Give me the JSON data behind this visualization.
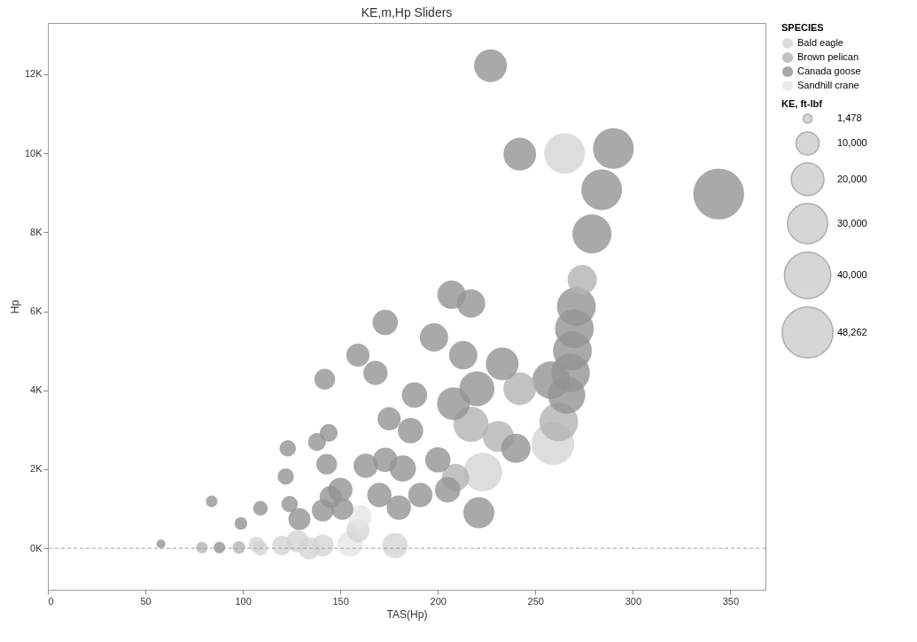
{
  "chart_data": {
    "type": "bubble",
    "title": "KE,m,Hp Sliders",
    "xlabel": "TAS(Hp)",
    "ylabel": "Hp",
    "legend_title": "SPECIES",
    "annotations": [
      "KE, ft-lbf"
    ],
    "size_legend": [
      {
        "value": 1478,
        "label": "1,478"
      },
      {
        "value": 10000,
        "label": "10,000"
      },
      {
        "value": 20000,
        "label": "20,000"
      },
      {
        "value": 30000,
        "label": "30,000"
      },
      {
        "value": 40000,
        "label": "40,000"
      },
      {
        "value": 48262,
        "label": "48,262"
      }
    ],
    "legend": "top right",
    "grid": false,
    "xlim": [
      0,
      368
    ],
    "xticks": [
      0,
      50,
      100,
      150,
      200,
      250,
      300,
      350
    ],
    "ylim": [
      -1050,
      13300
    ],
    "yticks": [
      {
        "value": 0,
        "label": "0K"
      },
      {
        "value": 2000,
        "label": "2K"
      },
      {
        "value": 4000,
        "label": "4K"
      },
      {
        "value": 6000,
        "label": "6K"
      },
      {
        "value": 8000,
        "label": "8K"
      },
      {
        "value": 10000,
        "label": "10K"
      },
      {
        "value": 12000,
        "label": "12K"
      }
    ],
    "ref_lines": [
      {
        "axis": "y",
        "value": 0,
        "label": null,
        "color": "#a0a0a0",
        "line_style": "dashed"
      }
    ],
    "series": [
      {
        "name": "Bald eagle",
        "color": "#d4d4d4",
        "x": [
          265,
          259,
          223,
          109,
          120,
          128,
          134,
          141,
          159,
          178,
          107
        ],
        "values": [
          10000,
          2650,
          1930,
          0,
          70,
          180,
          0,
          70,
          450,
          70,
          100
        ],
        "sizes": [
          31000,
          34000,
          28000,
          4000,
          7000,
          9000,
          9000,
          9000,
          10000,
          12000,
          4500
        ]
      },
      {
        "name": "Brown pelican",
        "color": "#b3b3b3",
        "x": [
          274,
          262,
          217,
          209,
          79,
          98,
          242,
          231
        ],
        "values": [
          6800,
          3200,
          3140,
          1790,
          20,
          20,
          4040,
          2830
        ],
        "sizes": [
          16000,
          28000,
          23000,
          14000,
          2500,
          3000,
          20000,
          18000
        ]
      },
      {
        "name": "Canada goose",
        "color": "#939393",
        "x": [
          227,
          242,
          290,
          284,
          279,
          344,
          271,
          270,
          269,
          268,
          266,
          258,
          207,
          217,
          173,
          198,
          159,
          168,
          142,
          213,
          233,
          220,
          208,
          188,
          175,
          186,
          240,
          221,
          123,
          144,
          138,
          122,
          143,
          109,
          99,
          124,
          129,
          141,
          150,
          163,
          173,
          182,
          170,
          180,
          191,
          200,
          205,
          88,
          58,
          84,
          145,
          151
        ],
        "values": [
          12220,
          9980,
          10120,
          9080,
          7960,
          8970,
          6120,
          5560,
          5000,
          4440,
          3880,
          4260,
          6420,
          6200,
          5720,
          5340,
          4890,
          4440,
          4280,
          4890,
          4670,
          4040,
          3660,
          3880,
          3280,
          2980,
          2530,
          900,
          2530,
          2920,
          2690,
          1820,
          2130,
          1010,
          630,
          1120,
          740,
          960,
          1480,
          2090,
          2240,
          2020,
          1350,
          1030,
          1350,
          2240,
          1480,
          20,
          110,
          1190,
          1300,
          1000
        ],
        "sizes": [
          20000,
          20000,
          31000,
          31000,
          28500,
          48262,
          28000,
          28000,
          28000,
          28000,
          26000,
          26000,
          15000,
          15000,
          12000,
          15000,
          10000,
          11000,
          8000,
          15000,
          20000,
          23000,
          20000,
          12000,
          10000,
          12000,
          16000,
          18000,
          5000,
          6000,
          6000,
          5000,
          8000,
          4000,
          3000,
          5000,
          9000,
          9000,
          11000,
          11000,
          11000,
          13000,
          11000,
          11000,
          11000,
          12000,
          12000,
          2500,
          1478,
          2500,
          9000,
          9000
        ]
      },
      {
        "name": "Sandhill crane",
        "color": "#e6e6e6",
        "x": [
          155,
          160
        ],
        "values": [
          110,
          800
        ],
        "sizes": [
          12000,
          10000
        ]
      }
    ]
  }
}
